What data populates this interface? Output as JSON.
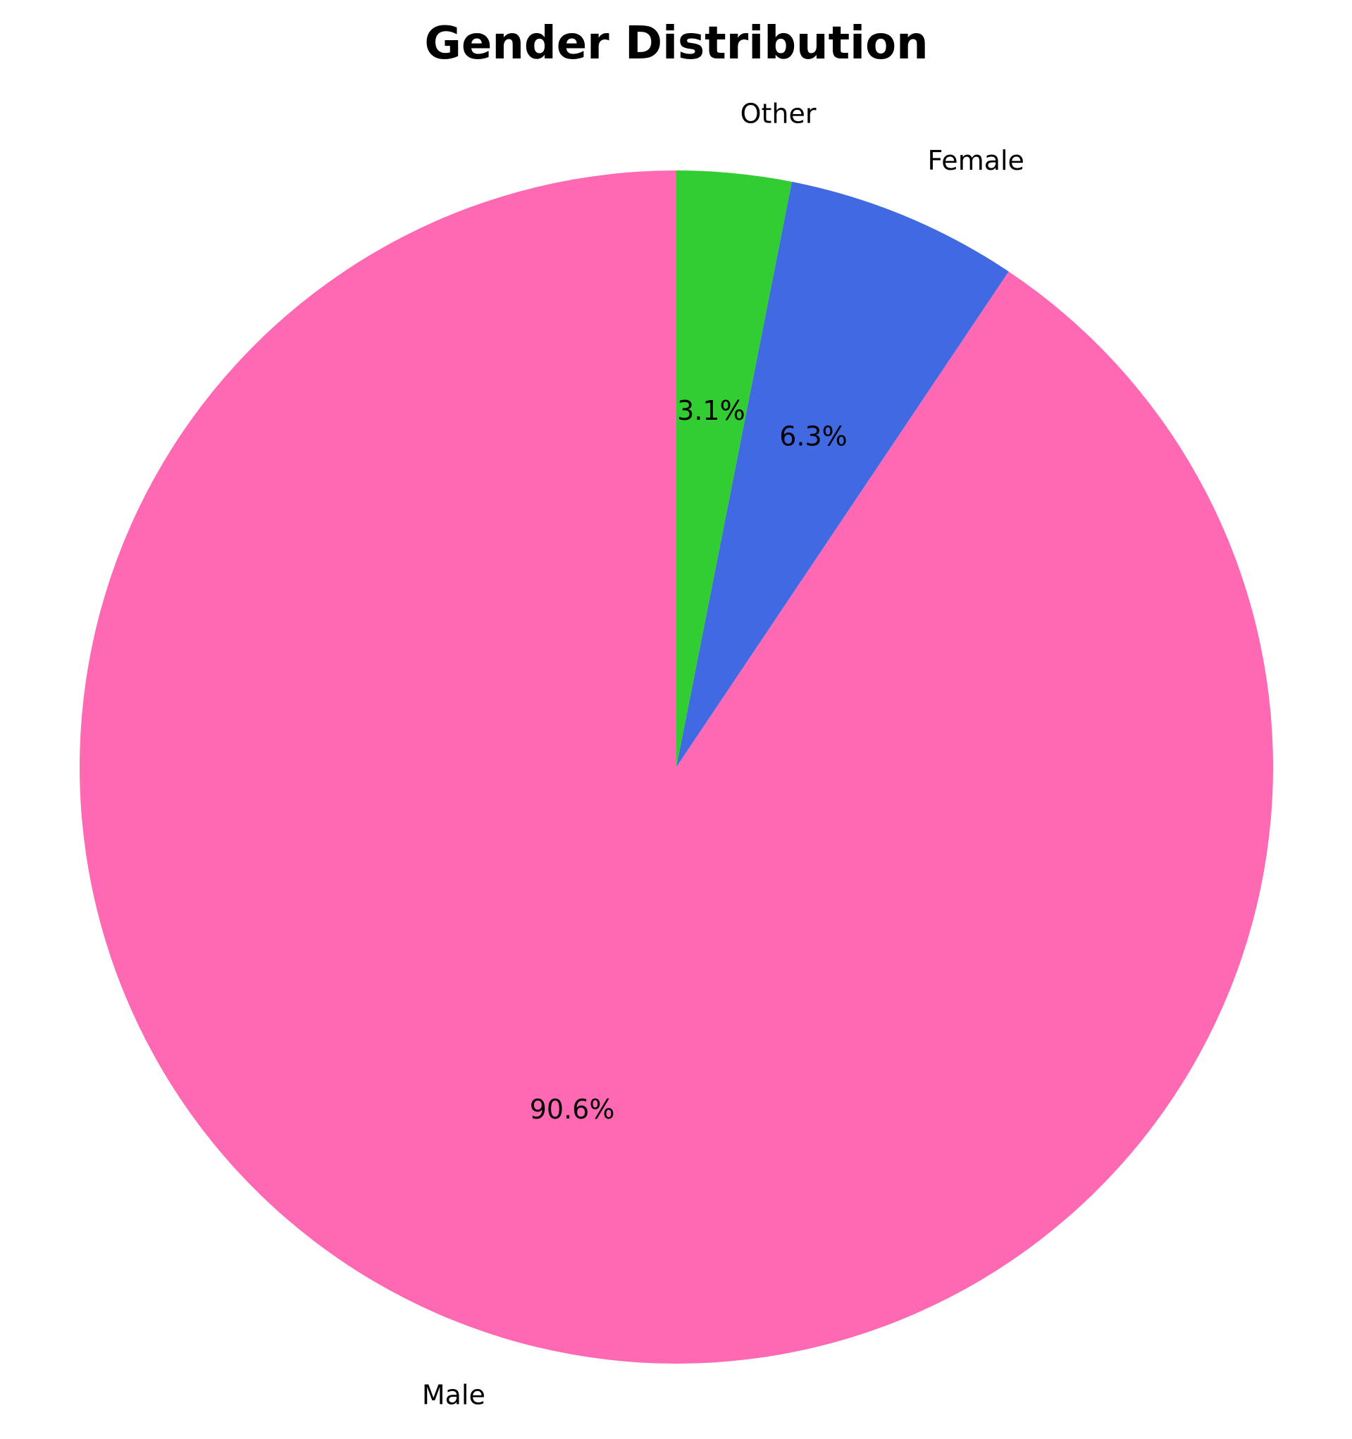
{
  "chart_data": {
    "type": "pie",
    "title": "Gender Distribution",
    "categories": [
      "Male",
      "Female",
      "Other"
    ],
    "values": [
      90.6,
      6.3,
      3.1
    ],
    "percent_labels": [
      "90.6%",
      "6.3%",
      "3.1%"
    ],
    "colors": [
      "#ff69b4",
      "#4169e1",
      "#32cd32"
    ],
    "start_angle_deg": 90,
    "direction": "counterclockwise",
    "legend": "none"
  }
}
